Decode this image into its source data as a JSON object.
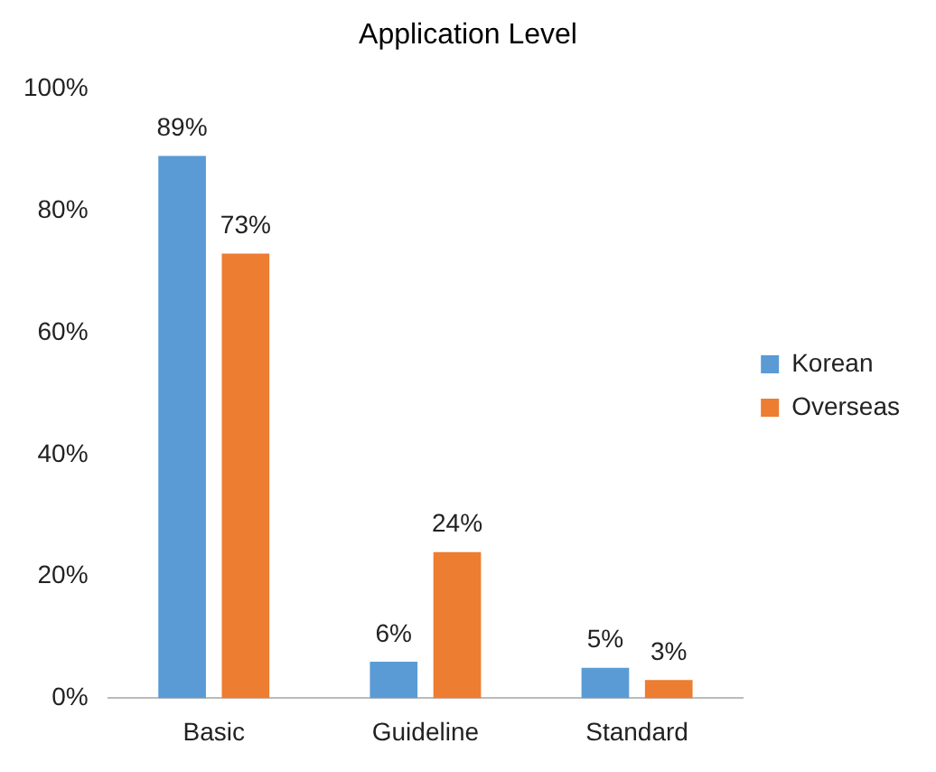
{
  "chart_data": {
    "type": "bar",
    "title": "Application Level",
    "categories": [
      "Basic",
      "Guideline",
      "Standard"
    ],
    "series": [
      {
        "name": "Korean",
        "color": "#5b9bd5",
        "values": [
          89,
          6,
          5
        ],
        "value_labels": [
          "89%",
          "6%",
          "5%"
        ]
      },
      {
        "name": "Overseas",
        "color": "#ed7d31",
        "values": [
          73,
          24,
          3
        ],
        "value_labels": [
          "73%",
          "24%",
          "3%"
        ]
      }
    ],
    "ylim": [
      0,
      100
    ],
    "yticks": [
      {
        "value": 0,
        "label": "0%"
      },
      {
        "value": 20,
        "label": "20%"
      },
      {
        "value": 40,
        "label": "40%"
      },
      {
        "value": 60,
        "label": "60%"
      },
      {
        "value": 80,
        "label": "80%"
      },
      {
        "value": 100,
        "label": "100%"
      }
    ],
    "grid": false,
    "legend": "right"
  }
}
